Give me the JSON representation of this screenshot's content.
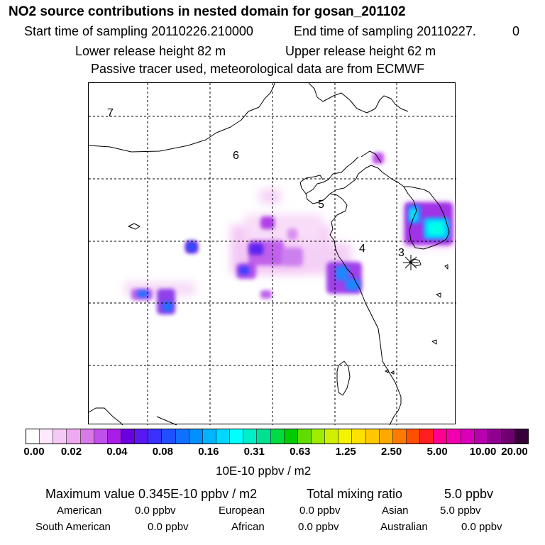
{
  "header": {
    "title": "NO2 source contributions in nested domain for gosan_201102",
    "start_label": "Start time of sampling 20110226.210000",
    "end_label": "End time of sampling 20110227.",
    "end_value": "0",
    "lower_release": "Lower release height   82 m",
    "upper_release": "Upper release height   62 m",
    "tracer_note": "Passive tracer used, meteorological data are from ECMWF"
  },
  "map": {
    "region_labels": [
      "7",
      "6",
      "5",
      "4",
      "3"
    ],
    "receptor_marker": "asterisk-icon"
  },
  "colorbar": {
    "colors": [
      "#ffffff",
      "#fde8fd",
      "#f6c8f6",
      "#eeaaf0",
      "#d77ae8",
      "#c050ea",
      "#a81ee8",
      "#6a00e0",
      "#5a18f0",
      "#3a30ff",
      "#2050ff",
      "#1070ff",
      "#0090ff",
      "#00b4ff",
      "#00d8ff",
      "#00ffff",
      "#00eec8",
      "#00e090",
      "#00dc40",
      "#00cc00",
      "#60dc00",
      "#a0ec00",
      "#d0f000",
      "#f4f400",
      "#ffe000",
      "#ffc800",
      "#ffa800",
      "#ff7a00",
      "#ff5000",
      "#ff1e20",
      "#ff0090",
      "#f000b0",
      "#d800b8",
      "#b800b0",
      "#900090",
      "#700070",
      "#380038"
    ],
    "tick_labels": [
      "0.00",
      "0.02",
      "0.04",
      "0.08",
      "0.16",
      "0.31",
      "0.63",
      "1.25",
      "2.50",
      "5.00",
      "10.00",
      "20.00"
    ],
    "units": "10E-10 ppbv / m2"
  },
  "summary": {
    "max_value": "Maximum value  0.345E-10 ppbv / m2",
    "total_label": "Total mixing ratio",
    "total_value": "5.0 ppbv",
    "regions": [
      {
        "name": "American",
        "value": "0.0 ppbv"
      },
      {
        "name": "European",
        "value": "0.0 ppbv"
      },
      {
        "name": "Asian",
        "value": "5.0 ppbv"
      },
      {
        "name": "South American",
        "value": "0.0 ppbv"
      },
      {
        "name": "African",
        "value": "0.0 ppbv"
      },
      {
        "name": "Australian",
        "value": "0.0 ppbv"
      }
    ]
  }
}
